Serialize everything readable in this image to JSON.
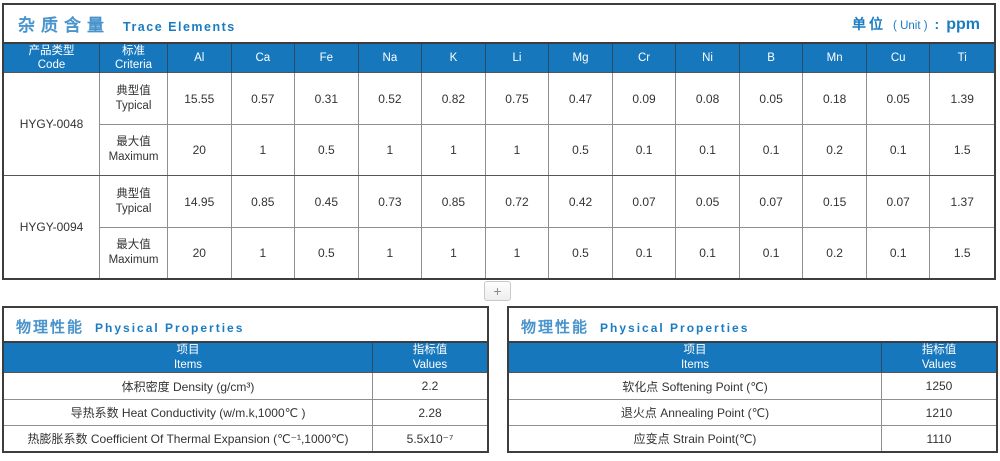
{
  "trace_table": {
    "title_cn": "杂质含量",
    "title_en": "Trace Elements",
    "unit_cn": "单位",
    "unit_en": "( Unit )",
    "unit_colon": ":",
    "unit_value": "ppm",
    "code_header_cn": "产品类型",
    "code_header_en": "Code",
    "criteria_header_cn": "标准",
    "criteria_header_en": "Criteria",
    "elements": [
      "Al",
      "Ca",
      "Fe",
      "Na",
      "K",
      "Li",
      "Mg",
      "Cr",
      "Ni",
      "B",
      "Mn",
      "Cu",
      "Ti"
    ],
    "row_labels": {
      "typical_cn": "典型值",
      "typical_en": "Typical",
      "max_cn": "最大值",
      "max_en": "Maximum"
    },
    "products": [
      {
        "code": "HYGY-0048",
        "typical": [
          "15.55",
          "0.57",
          "0.31",
          "0.52",
          "0.82",
          "0.75",
          "0.47",
          "0.09",
          "0.08",
          "0.05",
          "0.18",
          "0.05",
          "1.39"
        ],
        "maximum": [
          "20",
          "1",
          "0.5",
          "1",
          "1",
          "1",
          "0.5",
          "0.1",
          "0.1",
          "0.1",
          "0.2",
          "0.1",
          "1.5"
        ]
      },
      {
        "code": "HYGY-0094",
        "typical": [
          "14.95",
          "0.85",
          "0.45",
          "0.73",
          "0.85",
          "0.72",
          "0.42",
          "0.07",
          "0.05",
          "0.07",
          "0.15",
          "0.07",
          "1.37"
        ],
        "maximum": [
          "20",
          "1",
          "0.5",
          "1",
          "1",
          "1",
          "0.5",
          "0.1",
          "0.1",
          "0.1",
          "0.2",
          "0.1",
          "1.5"
        ]
      }
    ]
  },
  "add_button": {
    "label": "+"
  },
  "physical_left": {
    "title_cn": "物理性能",
    "title_en": "Physical Properties",
    "items_header_cn": "项目",
    "items_header_en": "Items",
    "values_header_cn": "指标值",
    "values_header_en": "Values",
    "rows": [
      {
        "item": "体积密度 Density (g/cm³)",
        "value": "2.2"
      },
      {
        "item": "导热系数 Heat Conductivity (w/m.k,1000℃ )",
        "value": "2.28"
      },
      {
        "item": "热膨胀系数 Coefficient Of Thermal Expansion (℃⁻¹,1000℃)",
        "value": "5.5x10⁻⁷"
      }
    ]
  },
  "physical_right": {
    "title_cn": "物理性能",
    "title_en": "Physical Properties",
    "items_header_cn": "项目",
    "items_header_en": "Items",
    "values_header_cn": "指标值",
    "values_header_en": "Values",
    "rows": [
      {
        "item": "软化点 Softening Point (℃)",
        "value": "1250"
      },
      {
        "item": "退火点 Annealing Point (℃)",
        "value": "1210"
      },
      {
        "item": "应变点 Strain Point(℃)",
        "value": "1110"
      }
    ]
  },
  "colors": {
    "accent_blue": "#1677bd",
    "title_blue": "#4a94cc",
    "link_blue": "#1a7cc2",
    "border_dark": "#3d3d3d",
    "border_light": "#8f8f8f"
  }
}
